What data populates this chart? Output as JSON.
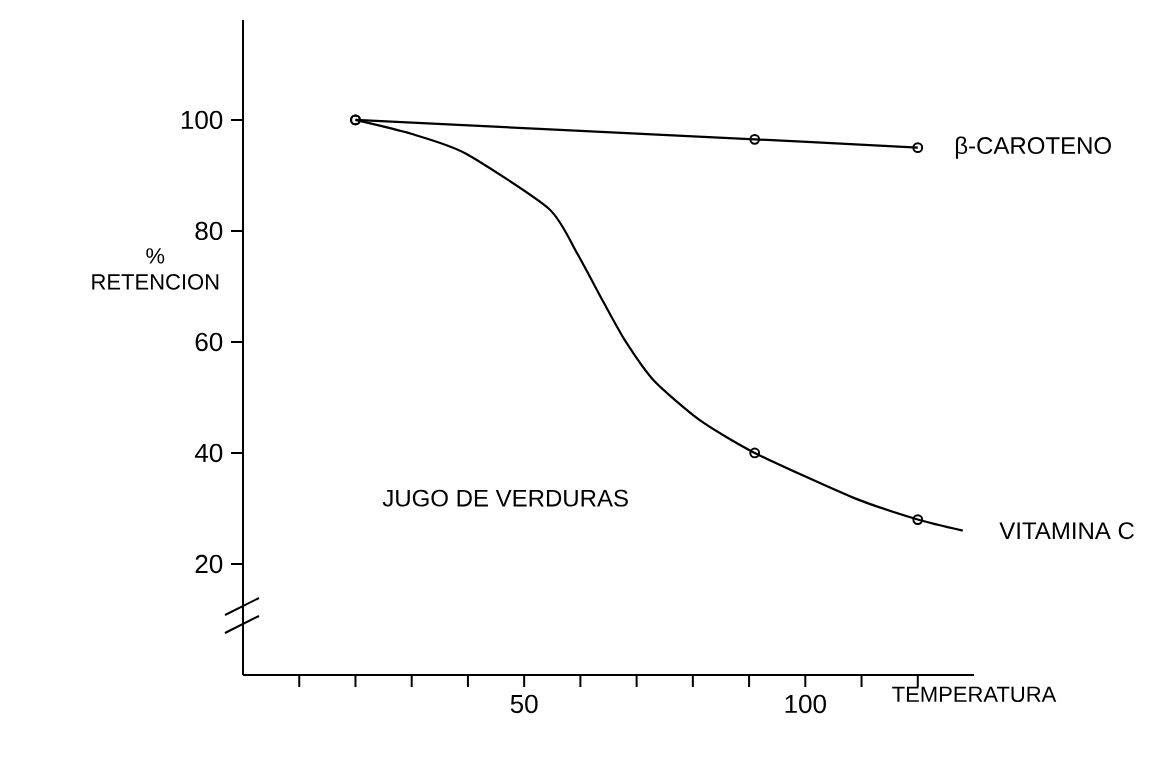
{
  "chart_data": {
    "type": "line",
    "xlabel": "TEMPERATURA",
    "ylabel": "% RETENCION",
    "annotations": [
      "JUGO DE VERDURAS"
    ],
    "xlim": [
      0,
      130
    ],
    "ylim": [
      0,
      118
    ],
    "xticks": [
      {
        "value": 10,
        "label": null
      },
      {
        "value": 20,
        "label": null
      },
      {
        "value": 30,
        "label": null
      },
      {
        "value": 40,
        "label": null
      },
      50,
      {
        "value": 60,
        "label": null
      },
      {
        "value": 70,
        "label": null
      },
      {
        "value": 80,
        "label": null
      },
      {
        "value": 90,
        "label": null
      },
      100,
      {
        "value": 110,
        "label": null
      },
      {
        "value": 120,
        "label": null
      }
    ],
    "yticks": [
      20,
      40,
      60,
      80,
      100
    ],
    "series": [
      {
        "name": "β-CAROTENO",
        "color": "#000000",
        "x": [
          20,
          91,
          120
        ],
        "values": [
          100,
          96.5,
          95
        ],
        "marker": "circle"
      },
      {
        "name": "VITAMINA C",
        "color": "#000000",
        "x": [
          20,
          29.9,
          39.5,
          54.4,
          59.4,
          64.2,
          68.1,
          73.1,
          81.1,
          91,
          108.4,
          120,
          128
        ],
        "values": [
          100,
          97.5,
          94,
          84,
          76,
          67,
          60,
          53,
          46,
          40,
          32,
          28,
          26
        ],
        "marker": "none"
      },
      {
        "type": "scatter",
        "color": "#000000",
        "x": [
          20,
          91,
          120
        ],
        "values": [
          100,
          40,
          28
        ],
        "marker": "circle"
      }
    ]
  }
}
